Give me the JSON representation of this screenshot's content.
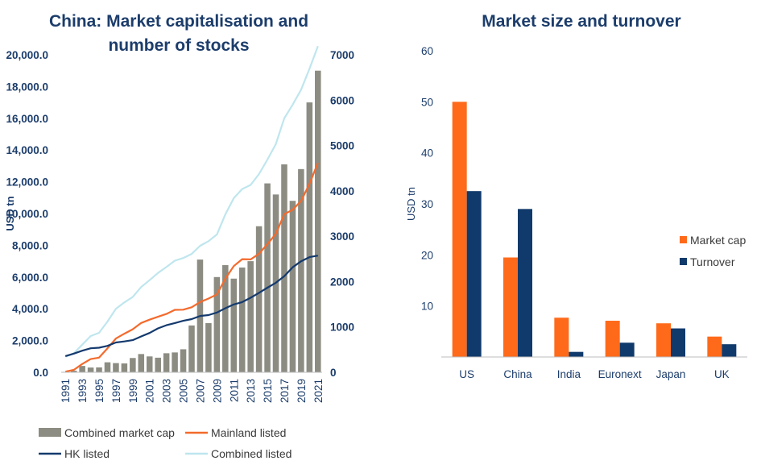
{
  "colors": {
    "combined_cap": "#8c8c82",
    "mainland": "#f46a2c",
    "hk": "#143a6e",
    "combined_listed": "#bfe6ee",
    "market_cap": "#ff6a1a",
    "turnover": "#103a6b",
    "text": "#1c3d6b"
  },
  "chart_data": [
    {
      "type": "bar",
      "title": "China: Market capitalisation and number of stocks",
      "title_lines": [
        "China: Market capitalisation and",
        "number of stocks"
      ],
      "ylabel": "USD tn",
      "ylim": [
        0,
        20000
      ],
      "y_ticks": [
        "0.0",
        "2,000.0",
        "4,000.0",
        "6,000.0",
        "8,000.0",
        "10,000.0",
        "12,000.0",
        "14,000.0",
        "16,000.0",
        "18,000.0",
        "20,000.0"
      ],
      "y2lim": [
        0,
        7000
      ],
      "y2_ticks": [
        "0",
        "1000",
        "2000",
        "3000",
        "4000",
        "5000",
        "6000",
        "7000"
      ],
      "categories": [
        1991,
        1992,
        1993,
        1994,
        1995,
        1996,
        1997,
        1998,
        1999,
        2000,
        2001,
        2002,
        2003,
        2004,
        2005,
        2006,
        2007,
        2008,
        2009,
        2010,
        2011,
        2012,
        2013,
        2014,
        2015,
        2016,
        2017,
        2018,
        2019,
        2020,
        2021
      ],
      "x_tick_labels": [
        "1991",
        "1993",
        "1995",
        "1997",
        "1999",
        "2001",
        "2003",
        "2005",
        "2007",
        "2009",
        "2011",
        "2013",
        "2015",
        "2017",
        "2019",
        "2021"
      ],
      "series": [
        {
          "name": "Combined market cap",
          "type": "bar",
          "axis": "left",
          "values": [
            30,
            100,
            400,
            300,
            310,
            630,
            580,
            560,
            900,
            1150,
            1000,
            920,
            1200,
            1250,
            1450,
            2950,
            7100,
            3100,
            6000,
            6750,
            5900,
            6600,
            7000,
            9200,
            11900,
            11200,
            13100,
            10800,
            12800,
            17000,
            19000
          ]
        },
        {
          "name": "Mainland listed",
          "type": "line",
          "axis": "right",
          "values": [
            14,
            53,
            183,
            291,
            323,
            530,
            745,
            851,
            949,
            1088,
            1160,
            1224,
            1287,
            1377,
            1381,
            1434,
            1550,
            1625,
            1718,
            2063,
            2342,
            2494,
            2489,
            2613,
            2827,
            3052,
            3485,
            3584,
            3777,
            4154,
            4615
          ]
        },
        {
          "name": "HK listed",
          "type": "line",
          "axis": "right",
          "values": [
            357,
            413,
            477,
            529,
            542,
            583,
            658,
            680,
            708,
            790,
            867,
            968,
            1037,
            1086,
            1135,
            1173,
            1241,
            1261,
            1319,
            1413,
            1496,
            1547,
            1643,
            1752,
            1866,
            1973,
            2118,
            2315,
            2449,
            2538,
            2572
          ]
        },
        {
          "name": "Combined listed",
          "type": "line",
          "axis": "right",
          "values": [
            340,
            420,
            610,
            800,
            870,
            1120,
            1400,
            1540,
            1660,
            1880,
            2030,
            2190,
            2320,
            2460,
            2520,
            2610,
            2790,
            2890,
            3040,
            3480,
            3840,
            4040,
            4130,
            4370,
            4690,
            5030,
            5600,
            5900,
            6230,
            6690,
            7190
          ]
        }
      ],
      "legend": [
        "Combined market cap",
        "Mainland listed",
        "HK listed",
        "Combined listed"
      ],
      "legend_position": "bottom",
      "grid": false
    },
    {
      "type": "bar",
      "title": "Market size and turnover",
      "ylabel": "USD tn",
      "ylim": [
        0,
        60
      ],
      "y_ticks": [
        "10",
        "20",
        "30",
        "40",
        "50",
        "60"
      ],
      "categories": [
        "US",
        "China",
        "India",
        "Euronext",
        "Japan",
        "UK"
      ],
      "series": [
        {
          "name": "Market cap",
          "values": [
            50.0,
            19.5,
            7.7,
            7.1,
            6.6,
            4.0
          ]
        },
        {
          "name": "Turnover",
          "values": [
            32.5,
            29.0,
            1.0,
            2.8,
            5.6,
            2.5
          ]
        }
      ],
      "legend_position": "right",
      "grid": false
    }
  ]
}
